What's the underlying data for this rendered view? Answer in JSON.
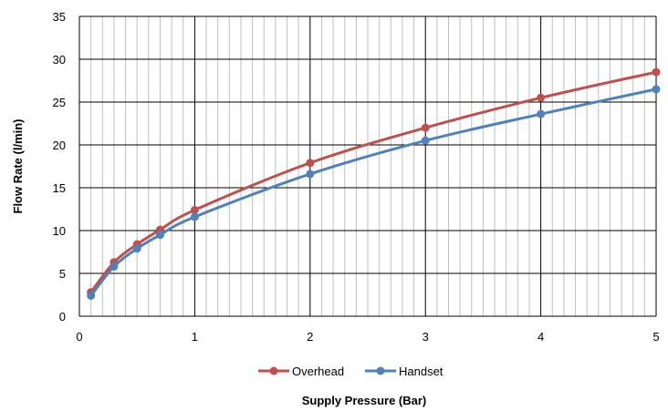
{
  "chart_data": {
    "type": "line",
    "title": "",
    "xlabel": "Supply Pressure (Bar)",
    "ylabel": "Flow Rate (l/min)",
    "xlim": [
      0,
      5
    ],
    "ylim": [
      0,
      35
    ],
    "x_ticks": [
      "0",
      "1",
      "2",
      "3",
      "4",
      "5"
    ],
    "y_ticks": [
      "0",
      "5",
      "10",
      "15",
      "20",
      "25",
      "30",
      "35"
    ],
    "grid": true,
    "legend_position": "bottom",
    "series": [
      {
        "name": "Overhead",
        "color": "#C0504D",
        "x": [
          0.1,
          0.3,
          0.5,
          0.7,
          1,
          2,
          3,
          4,
          5
        ],
        "y": [
          2.8,
          6.3,
          8.4,
          10.1,
          12.4,
          17.9,
          22.0,
          25.5,
          28.5
        ]
      },
      {
        "name": "Handset",
        "color": "#4F81BD",
        "x": [
          0.1,
          0.3,
          0.5,
          0.7,
          1,
          2,
          3,
          4,
          5
        ],
        "y": [
          2.4,
          5.8,
          7.9,
          9.5,
          11.6,
          16.6,
          20.5,
          23.6,
          26.5
        ]
      }
    ]
  }
}
